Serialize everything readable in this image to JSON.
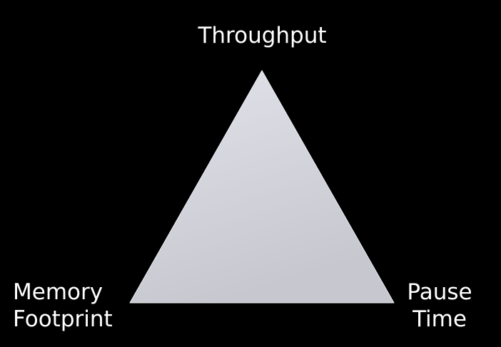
{
  "diagram": {
    "top_label": "Throughput",
    "left_label": [
      "Memory",
      "Footprint"
    ],
    "right_label": [
      "Pause",
      "Time"
    ],
    "colors": {
      "background": "#000000",
      "triangle_light": "#e2e3ea",
      "triangle_dark": "#c6c7cf",
      "text": "#ffffff"
    }
  }
}
